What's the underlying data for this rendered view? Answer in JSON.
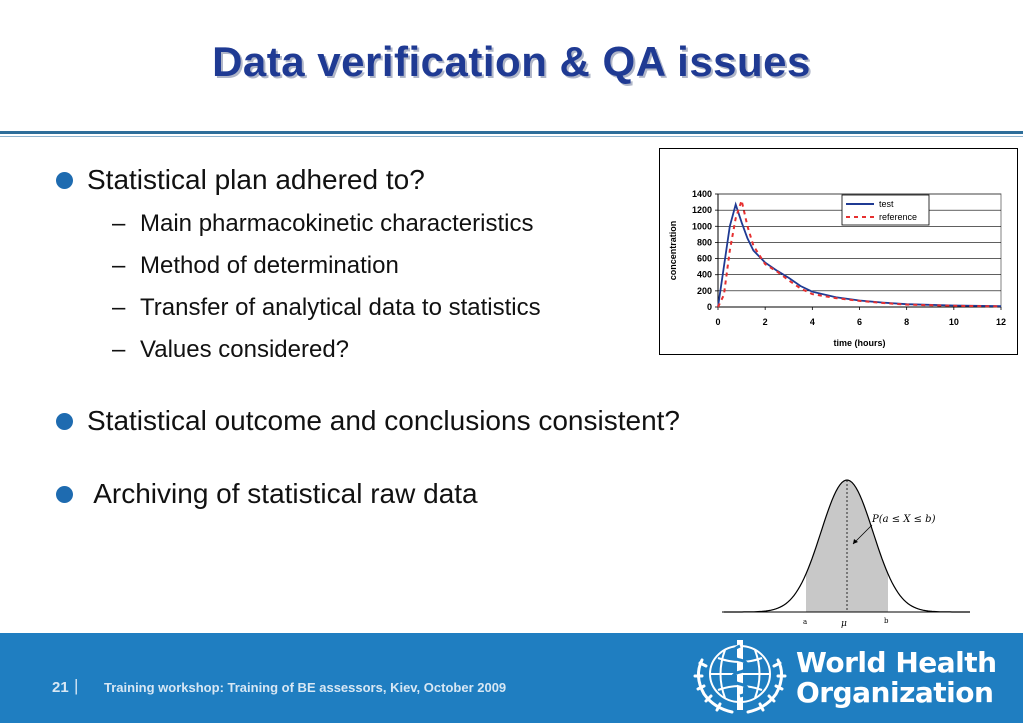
{
  "title": "Data verification & QA issues",
  "bullets": [
    {
      "text": "Statistical plan adhered to?",
      "subitems": [
        "Main pharmacokinetic characteristics",
        "Method of determination",
        "Transfer of analytical data to statistics",
        "Values considered?"
      ]
    },
    {
      "text": "Statistical outcome and conclusions consistent?"
    },
    {
      "text": " Archiving of statistical raw data"
    }
  ],
  "sub_dash": "–",
  "chart_data": {
    "type": "line",
    "xlabel": "time (hours)",
    "ylabel": "concentration",
    "xlim": [
      0,
      12
    ],
    "ylim": [
      0,
      1400
    ],
    "xticks": [
      "0",
      "2",
      "4",
      "6",
      "8",
      "10",
      "12"
    ],
    "yticks": [
      "0",
      "200",
      "400",
      "600",
      "800",
      "1000",
      "1200",
      "1400"
    ],
    "grid": true,
    "legend_position": "top-right",
    "series": [
      {
        "name": "test",
        "color": "#1f3a93",
        "style": "solid",
        "points": [
          [
            0,
            0
          ],
          [
            0.25,
            500
          ],
          [
            0.5,
            1000
          ],
          [
            0.75,
            1270
          ],
          [
            1,
            1050
          ],
          [
            1.25,
            850
          ],
          [
            1.5,
            700
          ],
          [
            2,
            550
          ],
          [
            2.5,
            450
          ],
          [
            3,
            360
          ],
          [
            3.5,
            260
          ],
          [
            4,
            190
          ],
          [
            5,
            120
          ],
          [
            6,
            80
          ],
          [
            7,
            55
          ],
          [
            8,
            35
          ],
          [
            10,
            18
          ],
          [
            12,
            10
          ]
        ]
      },
      {
        "name": "reference",
        "color": "#e63030",
        "style": "dashed",
        "points": [
          [
            0,
            0
          ],
          [
            0.25,
            150
          ],
          [
            0.5,
            700
          ],
          [
            0.75,
            1100
          ],
          [
            1,
            1320
          ],
          [
            1.25,
            1000
          ],
          [
            1.5,
            760
          ],
          [
            2,
            530
          ],
          [
            2.5,
            440
          ],
          [
            3,
            330
          ],
          [
            3.5,
            230
          ],
          [
            4,
            160
          ],
          [
            5,
            110
          ],
          [
            6,
            75
          ],
          [
            7,
            50
          ],
          [
            8,
            30
          ],
          [
            10,
            15
          ],
          [
            12,
            8
          ]
        ]
      }
    ]
  },
  "normal_plot": {
    "formula": "P(a ≤ X ≤ b)",
    "label_a": "a",
    "label_mu": "μ",
    "label_b": "b"
  },
  "footer": {
    "page": "21",
    "separator": "|",
    "text": "Training workshop: Training of BE assessors, Kiev, October 2009",
    "org_line1": "World Health",
    "org_line2": "Organization"
  },
  "colors": {
    "title": "#1f3a93",
    "bullet_dot": "#1e6bb0",
    "footer_bg": "#1f7ec1"
  }
}
